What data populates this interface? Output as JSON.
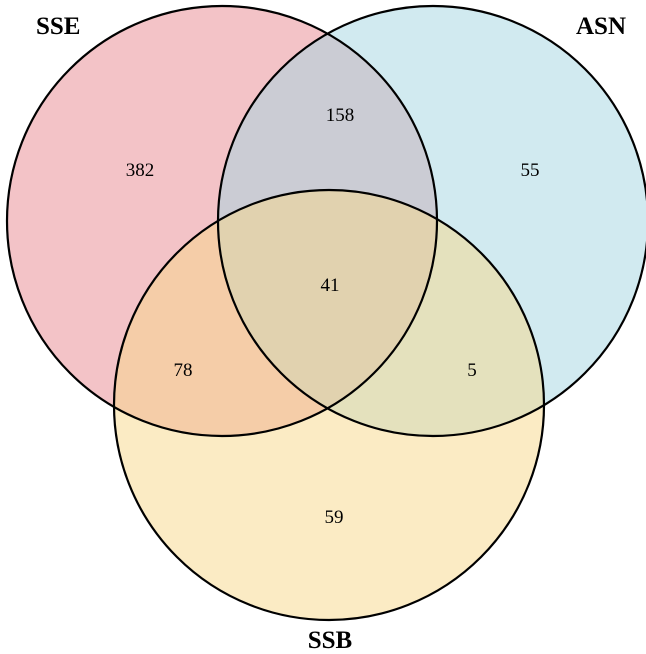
{
  "sets": [
    {
      "id": "sse",
      "label": "SSE",
      "color": "#e8888f"
    },
    {
      "id": "asn",
      "label": "ASN",
      "color": "#a4d5e2"
    },
    {
      "id": "ssb",
      "label": "SSB",
      "color": "#f7d88a"
    }
  ],
  "regions": {
    "sse_only": "382",
    "asn_only": "55",
    "ssb_only": "59",
    "sse_asn": "158",
    "sse_ssb": "78",
    "asn_ssb": "5",
    "all_three": "41"
  }
}
